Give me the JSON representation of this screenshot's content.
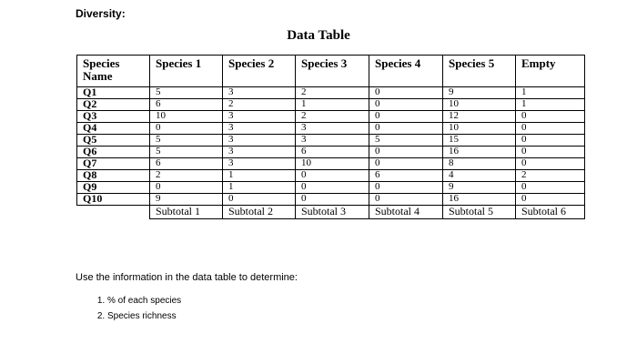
{
  "heading": "Diversity:",
  "table_title": "Data Table",
  "table": {
    "columns": [
      "Species Name",
      "Species 1",
      "Species 2",
      "Species 3",
      "Species 4",
      "Species 5",
      "Empty"
    ],
    "rows": [
      {
        "label": "Q1",
        "values": [
          "5",
          "3",
          "2",
          "0",
          "9",
          "1"
        ]
      },
      {
        "label": "Q2",
        "values": [
          "6",
          "2",
          "1",
          "0",
          "10",
          "1"
        ]
      },
      {
        "label": "Q3",
        "values": [
          "10",
          "3",
          "2",
          "0",
          "12",
          "0"
        ]
      },
      {
        "label": "Q4",
        "values": [
          "0",
          "3",
          "3",
          "0",
          "10",
          "0"
        ]
      },
      {
        "label": "Q5",
        "values": [
          "5",
          "3",
          "3",
          "5",
          "15",
          "0"
        ]
      },
      {
        "label": "Q6",
        "values": [
          "5",
          "3",
          "6",
          "0",
          "16",
          "0"
        ]
      },
      {
        "label": "Q7",
        "values": [
          "6",
          "3",
          "10",
          "0",
          "8",
          "0"
        ]
      },
      {
        "label": "Q8",
        "values": [
          "2",
          "1",
          "0",
          "6",
          "4",
          "2"
        ]
      },
      {
        "label": "Q9",
        "values": [
          "0",
          "1",
          "0",
          "0",
          "9",
          "0"
        ]
      },
      {
        "label": "Q10",
        "values": [
          "9",
          "0",
          "0",
          "0",
          "16",
          "0"
        ]
      }
    ],
    "subtotals": [
      "Subtotal 1",
      "Subtotal 2",
      "Subtotal 3",
      "Subtotal 4",
      "Subtotal 5",
      "Subtotal 6"
    ]
  },
  "instructions": "Use the information in the data table to determine:",
  "tasks": [
    "% of each species",
    "Species richness"
  ]
}
